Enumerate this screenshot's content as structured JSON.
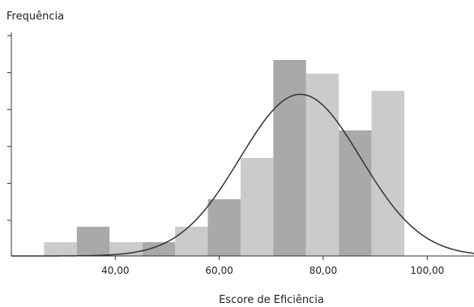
{
  "chart_data": {
    "type": "bar",
    "title": "",
    "xlabel": "Escore de Eficiência",
    "ylabel": "Frequência",
    "xlim": [
      20,
      109
    ],
    "ylim": [
      0,
      13
    ],
    "grid": false,
    "x_ticks": [
      40,
      60,
      80,
      100
    ],
    "x_tick_labels": [
      "40,00",
      "60,00",
      "80,00",
      "100,00"
    ],
    "y_tick_count": 6,
    "bin_width": 6.3,
    "bins": [
      {
        "start": 26.3,
        "end": 32.6,
        "count": 0.8
      },
      {
        "start": 32.6,
        "end": 38.9,
        "count": 1.7
      },
      {
        "start": 38.9,
        "end": 45.2,
        "count": 0.8
      },
      {
        "start": 45.2,
        "end": 51.5,
        "count": 0.8
      },
      {
        "start": 51.5,
        "end": 57.8,
        "count": 1.7
      },
      {
        "start": 57.8,
        "end": 64.1,
        "count": 3.3
      },
      {
        "start": 64.1,
        "end": 70.4,
        "count": 5.7
      },
      {
        "start": 70.4,
        "end": 76.7,
        "count": 11.4
      },
      {
        "start": 76.7,
        "end": 83.0,
        "count": 10.6
      },
      {
        "start": 83.0,
        "end": 89.3,
        "count": 7.3
      },
      {
        "start": 89.3,
        "end": 95.6,
        "count": 9.6
      }
    ],
    "normal_curve": {
      "mean": 75.6,
      "sd": 11.6,
      "peak": 9.4
    },
    "colors": {
      "bar_dark": "#a9a9a9",
      "bar_light": "#cbcbcb",
      "curve": "#333333",
      "axis": "#333333"
    }
  }
}
